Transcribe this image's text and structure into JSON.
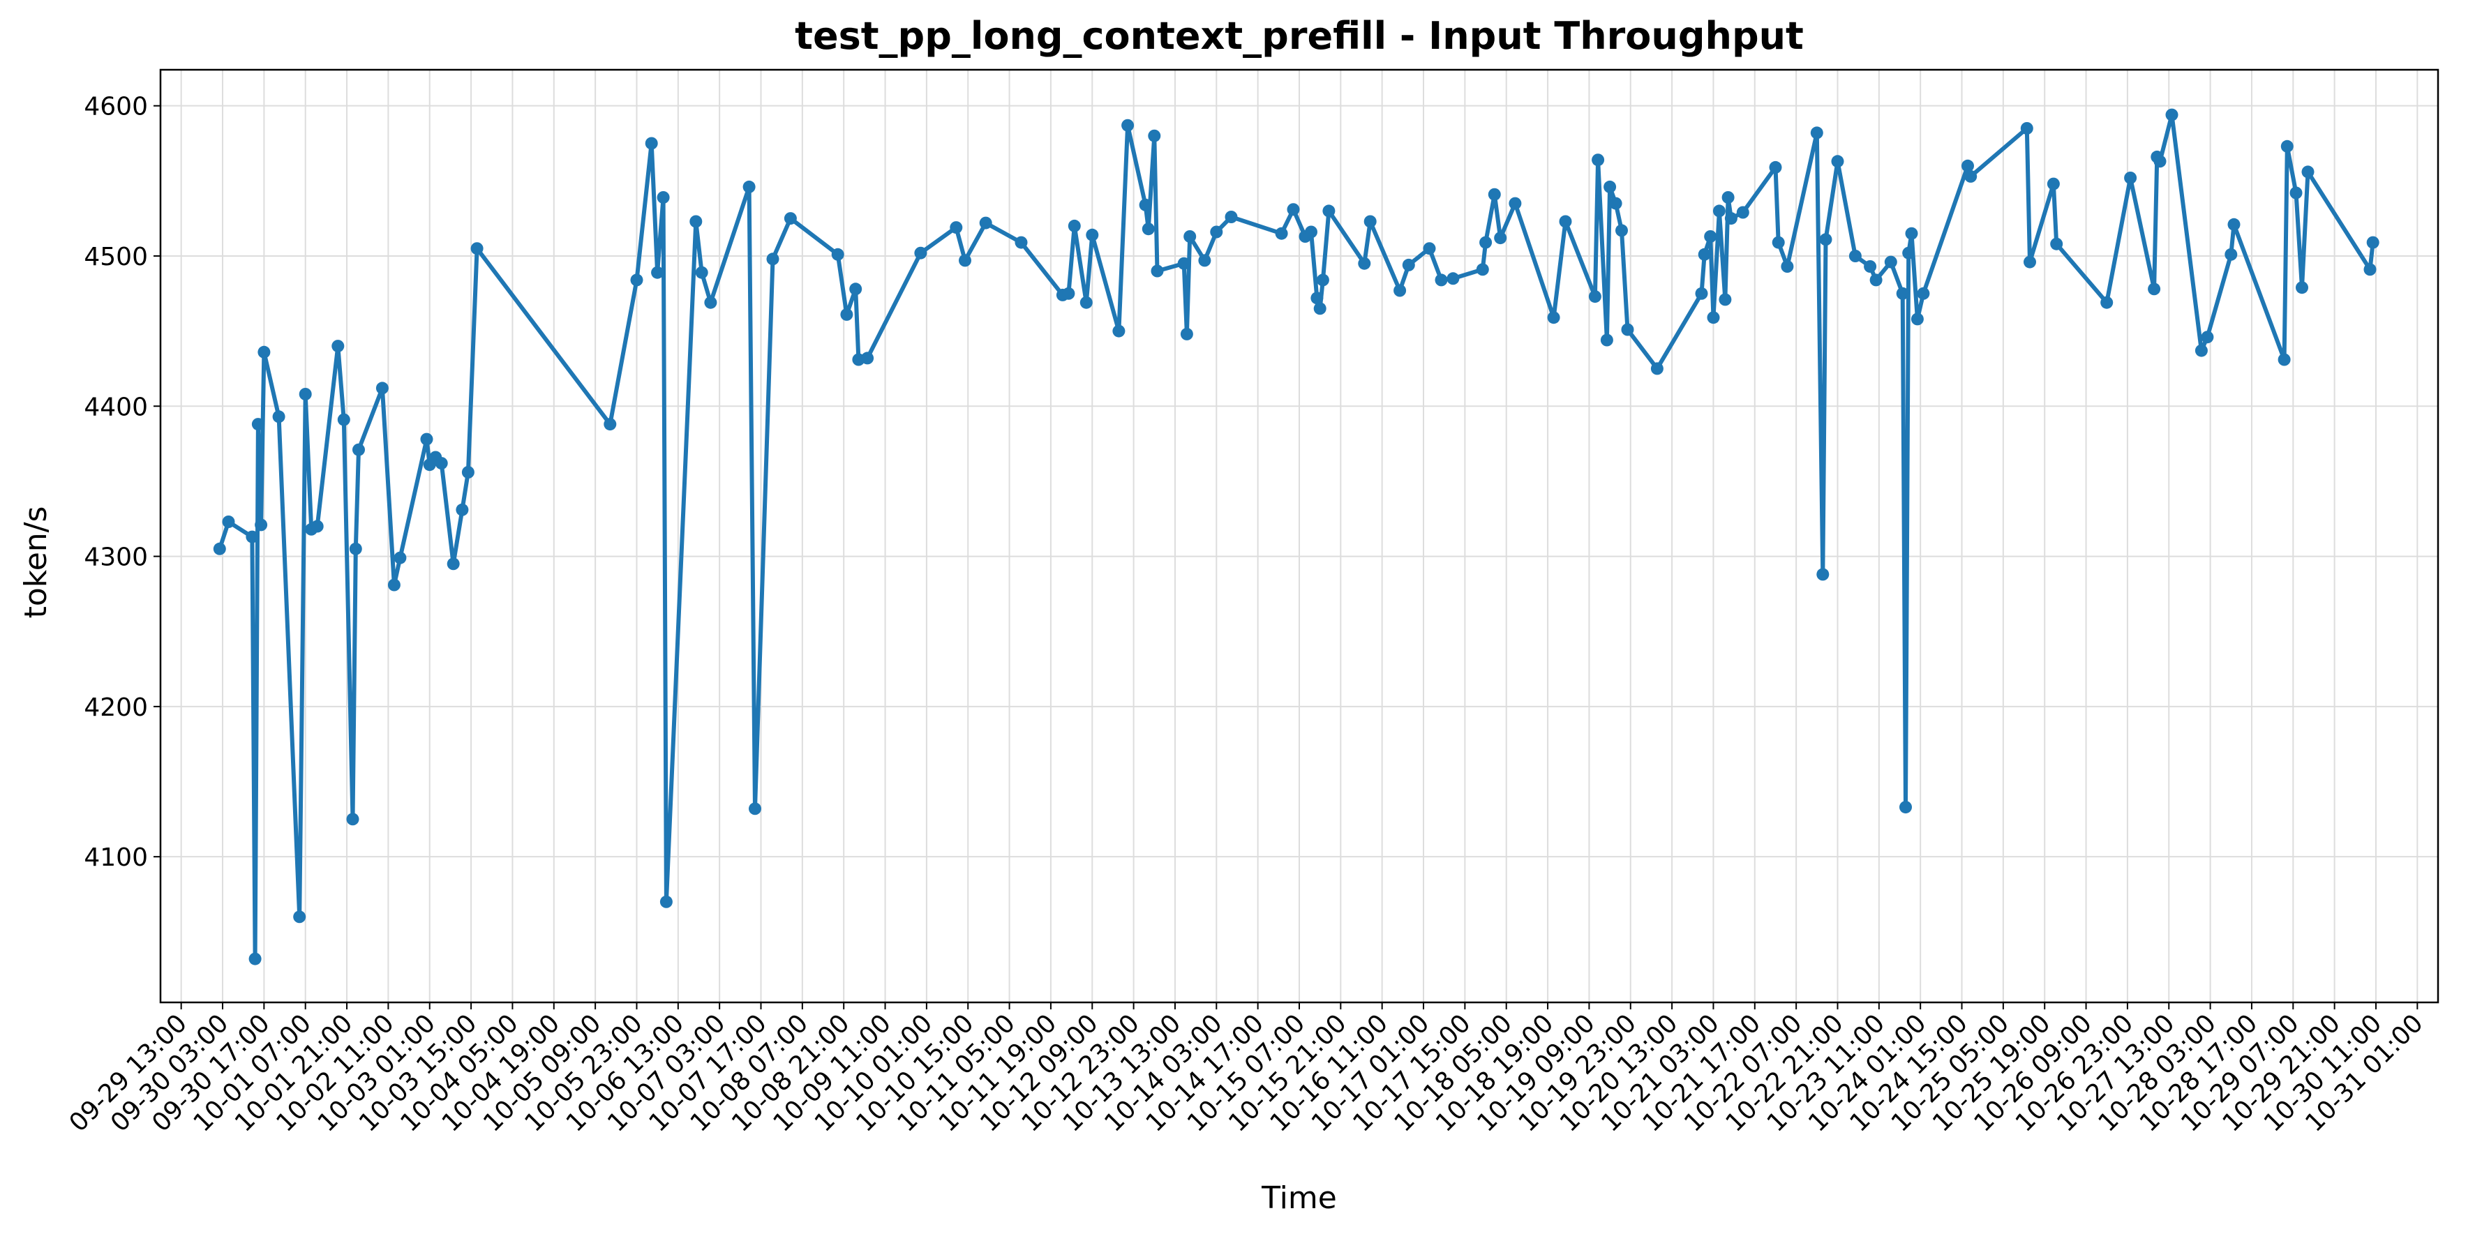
{
  "chart_data": {
    "type": "line",
    "title": "test_pp_long_context_prefill - Input Throughput",
    "xlabel": "Time",
    "ylabel": "token/s",
    "x_tick_labels": [
      "09-29 13:00",
      "09-30 03:00",
      "09-30 17:00",
      "10-01 07:00",
      "10-01 21:00",
      "10-02 11:00",
      "10-03 01:00",
      "10-03 15:00",
      "10-04 05:00",
      "10-04 19:00",
      "10-05 09:00",
      "10-05 23:00",
      "10-06 13:00",
      "10-07 03:00",
      "10-07 17:00",
      "10-08 07:00",
      "10-08 21:00",
      "10-09 11:00",
      "10-10 01:00",
      "10-10 15:00",
      "10-11 05:00",
      "10-11 19:00",
      "10-12 09:00",
      "10-12 23:00",
      "10-13 13:00",
      "10-14 03:00",
      "10-14 17:00",
      "10-15 07:00",
      "10-15 21:00",
      "10-16 11:00",
      "10-17 01:00",
      "10-17 15:00",
      "10-18 05:00",
      "10-18 19:00",
      "10-19 09:00",
      "10-19 23:00",
      "10-20 13:00",
      "10-21 03:00",
      "10-21 17:00",
      "10-22 07:00",
      "10-22 21:00",
      "10-23 11:00",
      "10-24 01:00",
      "10-24 15:00",
      "10-25 05:00",
      "10-25 19:00",
      "10-26 09:00",
      "10-26 23:00",
      "10-27 13:00",
      "10-28 03:00",
      "10-28 17:00",
      "10-29 07:00",
      "10-29 21:00",
      "10-30 11:00",
      "10-31 01:00"
    ],
    "y_ticks": [
      4100,
      4200,
      4300,
      4400,
      4500,
      4600
    ],
    "xlim": [
      "09-29 06:00",
      "10-31 08:00"
    ],
    "ylim": [
      4003,
      4624
    ],
    "grid": true,
    "color": "#1f77b4",
    "series": [
      {
        "values": [
          [
            "09-30 02:00",
            4305
          ],
          [
            "09-30 05:00",
            4323
          ],
          [
            "09-30 13:00",
            4313
          ],
          [
            "09-30 14:00",
            4032
          ],
          [
            "09-30 15:00",
            4388
          ],
          [
            "09-30 16:00",
            4321
          ],
          [
            "09-30 17:00",
            4436
          ],
          [
            "09-30 22:00",
            4393
          ],
          [
            "10-01 05:00",
            4060
          ],
          [
            "10-01 07:00",
            4408
          ],
          [
            "10-01 09:00",
            4318
          ],
          [
            "10-01 11:00",
            4320
          ],
          [
            "10-01 18:00",
            4440
          ],
          [
            "10-01 20:00",
            4391
          ],
          [
            "10-01 23:00",
            4125
          ],
          [
            "10-02 00:00",
            4305
          ],
          [
            "10-02 01:00",
            4371
          ],
          [
            "10-02 09:00",
            4412
          ],
          [
            "10-02 13:00",
            4281
          ],
          [
            "10-02 15:00",
            4299
          ],
          [
            "10-03 00:00",
            4378
          ],
          [
            "10-03 01:00",
            4361
          ],
          [
            "10-03 03:00",
            4366
          ],
          [
            "10-03 05:00",
            4362
          ],
          [
            "10-03 09:00",
            4295
          ],
          [
            "10-03 12:00",
            4331
          ],
          [
            "10-03 14:00",
            4356
          ],
          [
            "10-03 17:00",
            4505
          ],
          [
            "10-05 14:00",
            4388
          ],
          [
            "10-05 23:00",
            4484
          ],
          [
            "10-06 04:00",
            4575
          ],
          [
            "10-06 06:00",
            4489
          ],
          [
            "10-06 08:00",
            4539
          ],
          [
            "10-06 09:00",
            4070
          ],
          [
            "10-06 19:00",
            4523
          ],
          [
            "10-06 21:00",
            4489
          ],
          [
            "10-07 00:00",
            4469
          ],
          [
            "10-07 13:00",
            4546
          ],
          [
            "10-07 15:00",
            4132
          ],
          [
            "10-07 21:00",
            4498
          ],
          [
            "10-08 03:00",
            4525
          ],
          [
            "10-08 19:00",
            4501
          ],
          [
            "10-08 22:00",
            4461
          ],
          [
            "10-09 01:00",
            4478
          ],
          [
            "10-09 02:00",
            4431
          ],
          [
            "10-09 05:00",
            4432
          ],
          [
            "10-09 23:00",
            4502
          ],
          [
            "10-10 11:00",
            4519
          ],
          [
            "10-10 14:00",
            4497
          ],
          [
            "10-10 21:00",
            4522
          ],
          [
            "10-11 09:00",
            4509
          ],
          [
            "10-11 23:00",
            4474
          ],
          [
            "10-12 01:00",
            4475
          ],
          [
            "10-12 03:00",
            4520
          ],
          [
            "10-12 07:00",
            4469
          ],
          [
            "10-12 09:00",
            4514
          ],
          [
            "10-12 18:00",
            4450
          ],
          [
            "10-12 21:00",
            4587
          ],
          [
            "10-13 03:00",
            4534
          ],
          [
            "10-13 04:00",
            4518
          ],
          [
            "10-13 06:00",
            4580
          ],
          [
            "10-13 07:00",
            4490
          ],
          [
            "10-13 16:00",
            4495
          ],
          [
            "10-13 17:00",
            4448
          ],
          [
            "10-13 18:00",
            4513
          ],
          [
            "10-13 23:00",
            4497
          ],
          [
            "10-14 03:00",
            4516
          ],
          [
            "10-14 08:00",
            4526
          ],
          [
            "10-15 01:00",
            4515
          ],
          [
            "10-15 05:00",
            4531
          ],
          [
            "10-15 09:00",
            4513
          ],
          [
            "10-15 11:00",
            4516
          ],
          [
            "10-15 13:00",
            4472
          ],
          [
            "10-15 14:00",
            4465
          ],
          [
            "10-15 15:00",
            4484
          ],
          [
            "10-15 17:00",
            4530
          ],
          [
            "10-16 05:00",
            4495
          ],
          [
            "10-16 07:00",
            4523
          ],
          [
            "10-16 17:00",
            4477
          ],
          [
            "10-16 20:00",
            4494
          ],
          [
            "10-17 03:00",
            4505
          ],
          [
            "10-17 07:00",
            4484
          ],
          [
            "10-17 11:00",
            4485
          ],
          [
            "10-17 21:00",
            4491
          ],
          [
            "10-17 22:00",
            4509
          ],
          [
            "10-18 01:00",
            4541
          ],
          [
            "10-18 03:00",
            4512
          ],
          [
            "10-18 08:00",
            4535
          ],
          [
            "10-18 21:00",
            4459
          ],
          [
            "10-19 01:00",
            4523
          ],
          [
            "10-19 11:00",
            4473
          ],
          [
            "10-19 12:00",
            4564
          ],
          [
            "10-19 15:00",
            4444
          ],
          [
            "10-19 16:00",
            4546
          ],
          [
            "10-19 18:00",
            4535
          ],
          [
            "10-19 20:00",
            4517
          ],
          [
            "10-19 22:00",
            4451
          ],
          [
            "10-20 08:00",
            4425
          ],
          [
            "10-20 23:00",
            4475
          ],
          [
            "10-21 00:00",
            4501
          ],
          [
            "10-21 02:00",
            4513
          ],
          [
            "10-21 03:00",
            4459
          ],
          [
            "10-21 05:00",
            4530
          ],
          [
            "10-21 07:00",
            4471
          ],
          [
            "10-21 08:00",
            4539
          ],
          [
            "10-21 09:00",
            4525
          ],
          [
            "10-21 13:00",
            4529
          ],
          [
            "10-22 00:00",
            4559
          ],
          [
            "10-22 01:00",
            4509
          ],
          [
            "10-22 04:00",
            4493
          ],
          [
            "10-22 14:00",
            4582
          ],
          [
            "10-22 16:00",
            4288
          ],
          [
            "10-22 17:00",
            4511
          ],
          [
            "10-22 21:00",
            4563
          ],
          [
            "10-23 03:00",
            4500
          ],
          [
            "10-23 08:00",
            4493
          ],
          [
            "10-23 10:00",
            4484
          ],
          [
            "10-23 15:00",
            4496
          ],
          [
            "10-23 19:00",
            4475
          ],
          [
            "10-23 20:00",
            4133
          ],
          [
            "10-23 21:00",
            4502
          ],
          [
            "10-23 22:00",
            4515
          ],
          [
            "10-24 00:00",
            4458
          ],
          [
            "10-24 02:00",
            4475
          ],
          [
            "10-24 17:00",
            4560
          ],
          [
            "10-24 18:00",
            4553
          ],
          [
            "10-25 13:00",
            4585
          ],
          [
            "10-25 14:00",
            4496
          ],
          [
            "10-25 22:00",
            4548
          ],
          [
            "10-25 23:00",
            4508
          ],
          [
            "10-26 16:00",
            4469
          ],
          [
            "10-27 00:00",
            4552
          ],
          [
            "10-27 08:00",
            4478
          ],
          [
            "10-27 09:00",
            4566
          ],
          [
            "10-27 10:00",
            4563
          ],
          [
            "10-27 14:00",
            4594
          ],
          [
            "10-28 00:00",
            4437
          ],
          [
            "10-28 02:00",
            4446
          ],
          [
            "10-28 10:00",
            4501
          ],
          [
            "10-28 11:00",
            4521
          ],
          [
            "10-29 04:00",
            4431
          ],
          [
            "10-29 05:00",
            4573
          ],
          [
            "10-29 08:00",
            4542
          ],
          [
            "10-29 10:00",
            4479
          ],
          [
            "10-29 12:00",
            4556
          ],
          [
            "10-30 09:00",
            4491
          ],
          [
            "10-30 10:00",
            4509
          ]
        ]
      }
    ]
  }
}
